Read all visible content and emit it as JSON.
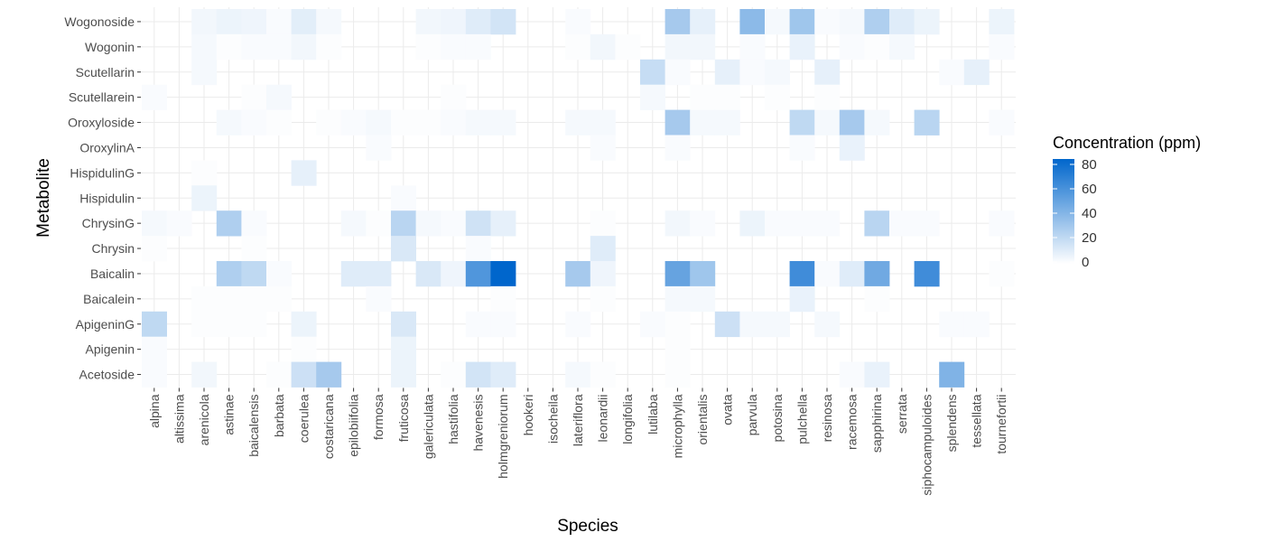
{
  "chart_data": {
    "type": "heatmap",
    "title": "",
    "xlabel": "Species",
    "ylabel": "Metabolite",
    "x_categories": [
      "alpina",
      "altissima",
      "arenicola",
      "astinae",
      "baicalensis",
      "barbata",
      "coerulea",
      "costaricana",
      "epilobiifolia",
      "formosa",
      "fruticosa",
      "galericulata",
      "hastifolia",
      "havenesis",
      "holmgreniorum",
      "hookeri",
      "isocheila",
      "lateriflora",
      "leonardii",
      "longifolia",
      "lutilaba",
      "microphylla",
      "orientalis",
      "ovata",
      "parvula",
      "potosina",
      "pulchella",
      "resinosa",
      "racemosa",
      "sapphirina",
      "serrata",
      "siphocampuloides",
      "splendens",
      "tessellata",
      "tournefortii"
    ],
    "y_categories": [
      "Wogonoside",
      "Wogonin",
      "Scutellarin",
      "Scutellarein",
      "Oroxyloside",
      "OroxylinA",
      "HispidulinG",
      "Hispidulin",
      "ChrysinG",
      "Chrysin",
      "Baicalin",
      "Baicalein",
      "ApigeninG",
      "Apigenin",
      "Acetoside"
    ],
    "values": [
      [
        0,
        0,
        4,
        6,
        5,
        2,
        9,
        3,
        0,
        0,
        0,
        4,
        5,
        10,
        14,
        0,
        0,
        2,
        0,
        0,
        0,
        28,
        8,
        0,
        36,
        3,
        30,
        2,
        3,
        25,
        10,
        6,
        0,
        0,
        6
      ],
      [
        0,
        0,
        3,
        1,
        2,
        2,
        4,
        1,
        0,
        0,
        0,
        1,
        2,
        2,
        0,
        0,
        0,
        1,
        4,
        1,
        0,
        4,
        4,
        0,
        2,
        0,
        7,
        0,
        2,
        1,
        3,
        0,
        0,
        0,
        2
      ],
      [
        0,
        0,
        3,
        0,
        0,
        0,
        0,
        0,
        0,
        0,
        0,
        0,
        0,
        0,
        0,
        0,
        0,
        0,
        0,
        0,
        18,
        2,
        0,
        8,
        2,
        3,
        0,
        8,
        0,
        0,
        0,
        0,
        2,
        8,
        0
      ],
      [
        2,
        0,
        0,
        0,
        1,
        3,
        0,
        0,
        0,
        0,
        0,
        0,
        1,
        0,
        0,
        0,
        0,
        0,
        0,
        0,
        3,
        0,
        1,
        1,
        0,
        1,
        0,
        1,
        0,
        0,
        0,
        0,
        0,
        0,
        0
      ],
      [
        0,
        0,
        0,
        3,
        2,
        1,
        0,
        1,
        2,
        3,
        1,
        1,
        2,
        3,
        3,
        0,
        0,
        3,
        3,
        0,
        0,
        28,
        3,
        3,
        0,
        0,
        20,
        3,
        28,
        3,
        0,
        22,
        0,
        0,
        2
      ],
      [
        0,
        0,
        0,
        0,
        0,
        0,
        0,
        0,
        0,
        2,
        0,
        0,
        0,
        0,
        0,
        0,
        0,
        0,
        2,
        0,
        0,
        2,
        0,
        0,
        0,
        0,
        2,
        0,
        7,
        0,
        0,
        0,
        0,
        0,
        0
      ],
      [
        0,
        0,
        1,
        0,
        0,
        0,
        8,
        0,
        0,
        0,
        0,
        0,
        0,
        0,
        0,
        0,
        0,
        0,
        0,
        0,
        0,
        0,
        0,
        0,
        0,
        0,
        0,
        0,
        0,
        0,
        0,
        0,
        0,
        0,
        0
      ],
      [
        0,
        0,
        6,
        0,
        0,
        0,
        0,
        0,
        0,
        0,
        2,
        0,
        0,
        0,
        0,
        0,
        0,
        0,
        0,
        0,
        0,
        0,
        0,
        0,
        0,
        0,
        0,
        0,
        0,
        0,
        0,
        0,
        0,
        0,
        0
      ],
      [
        3,
        2,
        0,
        25,
        2,
        0,
        0,
        0,
        3,
        1,
        22,
        3,
        2,
        15,
        8,
        0,
        0,
        0,
        1,
        0,
        0,
        4,
        2,
        0,
        6,
        2,
        2,
        2,
        0,
        22,
        2,
        2,
        0,
        0,
        2
      ],
      [
        1,
        0,
        0,
        0,
        1,
        0,
        0,
        0,
        0,
        0,
        12,
        0,
        0,
        2,
        0,
        0,
        0,
        0,
        10,
        0,
        0,
        0,
        0,
        0,
        0,
        0,
        0,
        0,
        0,
        0,
        0,
        0,
        0,
        0,
        0
      ],
      [
        0,
        0,
        0,
        25,
        20,
        2,
        0,
        0,
        10,
        10,
        0,
        12,
        5,
        55,
        80,
        0,
        0,
        28,
        5,
        0,
        0,
        48,
        30,
        0,
        0,
        0,
        60,
        2,
        10,
        45,
        0,
        60,
        0,
        0,
        1
      ],
      [
        0,
        0,
        1,
        1,
        1,
        1,
        0,
        0,
        0,
        2,
        0,
        0,
        0,
        0,
        1,
        0,
        0,
        0,
        1,
        0,
        0,
        3,
        3,
        0,
        0,
        0,
        7,
        0,
        0,
        1,
        0,
        0,
        0,
        0,
        0
      ],
      [
        20,
        0,
        1,
        1,
        1,
        0,
        6,
        0,
        0,
        0,
        12,
        0,
        0,
        2,
        2,
        0,
        0,
        2,
        0,
        0,
        2,
        1,
        0,
        16,
        3,
        3,
        0,
        3,
        0,
        0,
        0,
        0,
        2,
        2,
        0
      ],
      [
        2,
        0,
        0,
        0,
        0,
        0,
        1,
        0,
        0,
        0,
        6,
        0,
        0,
        0,
        0,
        0,
        0,
        0,
        0,
        0,
        0,
        1,
        0,
        0,
        0,
        0,
        0,
        0,
        0,
        0,
        0,
        0,
        0,
        0,
        0
      ],
      [
        2,
        0,
        4,
        0,
        0,
        1,
        16,
        28,
        0,
        0,
        6,
        0,
        1,
        14,
        10,
        0,
        0,
        3,
        1,
        0,
        0,
        1,
        0,
        0,
        0,
        0,
        0,
        0,
        2,
        7,
        0,
        0,
        40,
        0,
        0
      ]
    ],
    "scale": {
      "min": 0,
      "max": 80,
      "low_color": "#ffffff",
      "high_color": "#0066cc"
    },
    "legend": {
      "title": "Concentration (ppm)",
      "ticks": [
        "80",
        "60",
        "40",
        "20",
        "0"
      ],
      "placement": "right"
    },
    "grid": true
  }
}
